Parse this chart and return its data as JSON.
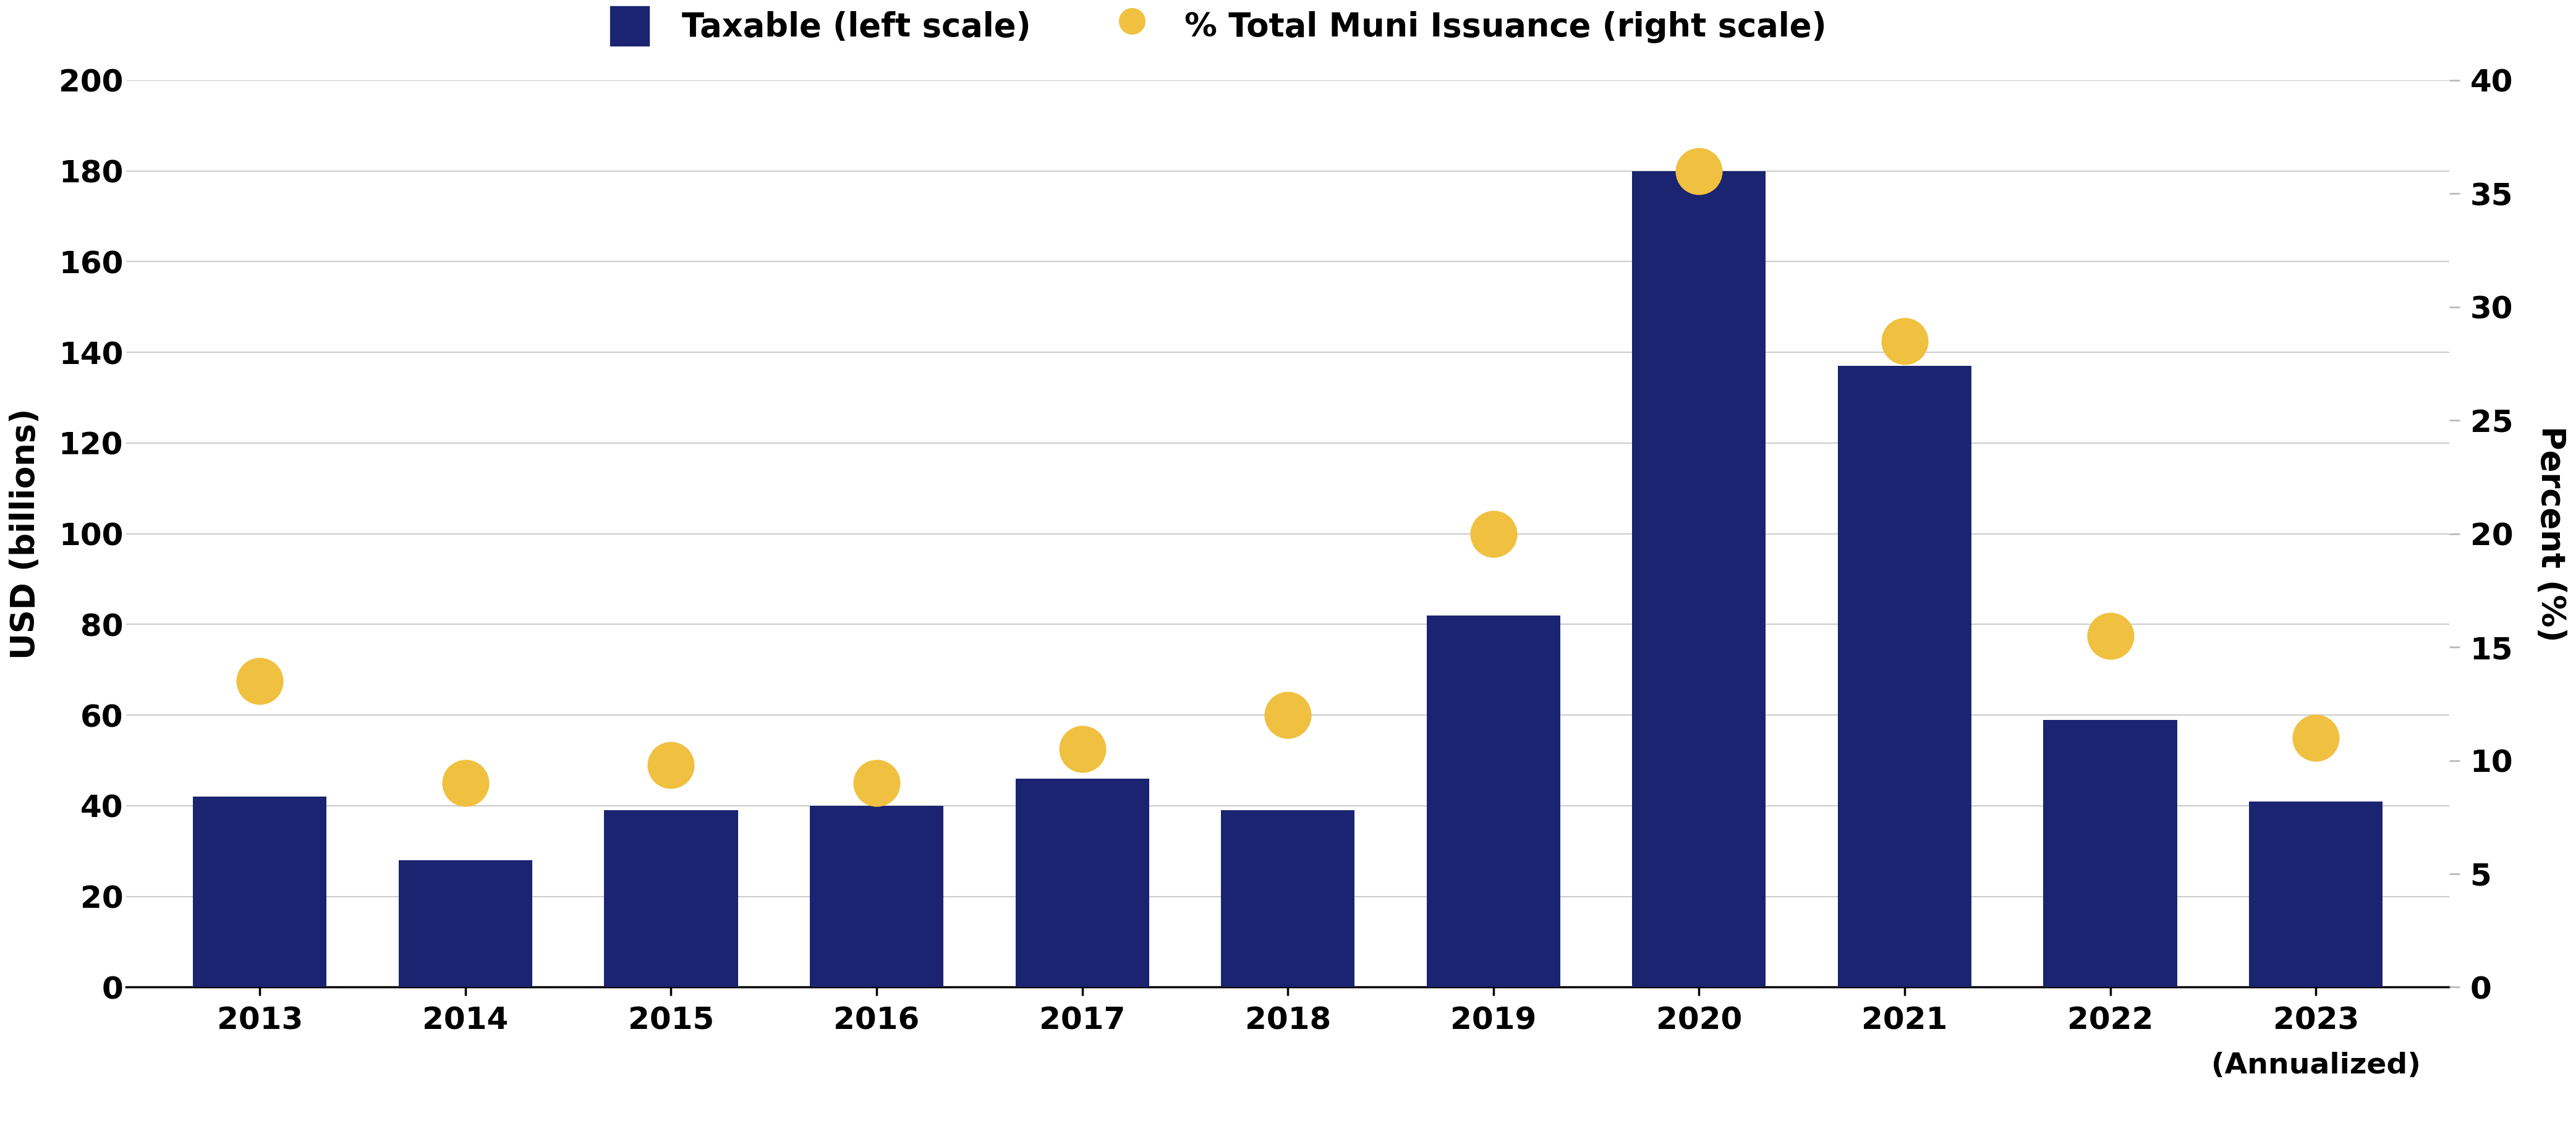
{
  "years": [
    "2013",
    "2014",
    "2015",
    "2016",
    "2017",
    "2018",
    "2019",
    "2020",
    "2021",
    "2022",
    "2023"
  ],
  "bar_values": [
    42,
    28,
    39,
    40,
    46,
    39,
    82,
    180,
    137,
    59,
    41
  ],
  "dot_values": [
    13.5,
    9.0,
    9.8,
    9.0,
    10.5,
    12.0,
    20.0,
    36.0,
    28.5,
    15.5,
    11.0
  ],
  "bar_color": "#1a2470",
  "dot_color": "#f0c040",
  "left_ylim": [
    0,
    200
  ],
  "left_yticks": [
    0,
    20,
    40,
    60,
    80,
    100,
    120,
    140,
    160,
    180,
    200
  ],
  "right_ylim": [
    0,
    40
  ],
  "right_yticks": [
    0,
    5,
    10,
    15,
    20,
    25,
    30,
    35,
    40
  ],
  "left_ylabel": "USD (billions)",
  "right_ylabel": "Percent (%)",
  "xlabel_note": "(Annualized)",
  "legend_bar_label": "Taxable (left scale)",
  "legend_dot_label": "% Total Muni Issuance (right scale)",
  "background_color": "#ffffff",
  "grid_color": "#cccccc",
  "bar_width": 0.65,
  "dot_size": 3000,
  "tick_fontsize": 36,
  "label_fontsize": 38,
  "legend_fontsize": 38,
  "annot_fontsize": 34
}
